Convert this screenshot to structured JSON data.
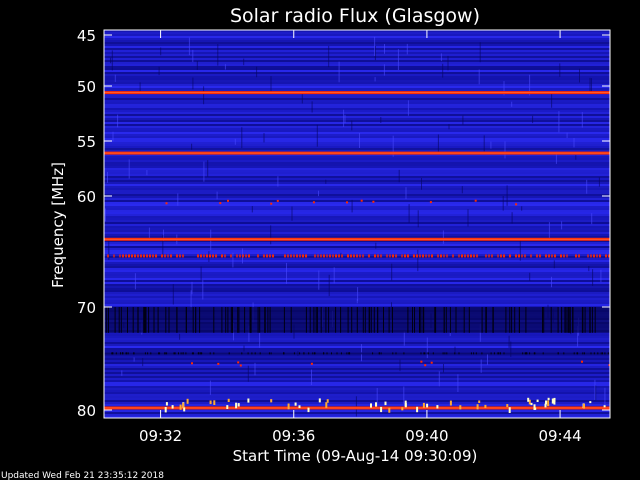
{
  "chart_data": {
    "type": "heatmap",
    "title": "Solar radio Flux (Glasgow)",
    "xlabel": "Start Time (09-Aug-14 09:30:09)",
    "ylabel": "Frequency [MHz]",
    "x_ticks": [
      "09:32",
      "09:36",
      "09:40",
      "09:44"
    ],
    "x_tick_minutes": [
      2,
      6,
      10,
      14
    ],
    "xlim_minutes": [
      0.3,
      15.5
    ],
    "y_ticks": [
      45,
      50,
      55,
      60,
      70,
      80
    ],
    "ylim": [
      80.5,
      44.3
    ],
    "colors": {
      "background": "#000000",
      "low": "#0a0a8c",
      "mid": "#2a2af0",
      "high": "#ff2a00",
      "peak": "#ffffcc"
    },
    "bands": [
      {
        "freq": 50.6,
        "level": "high"
      },
      {
        "freq": 56.1,
        "level": "high"
      },
      {
        "freq": 63.9,
        "level": "high"
      },
      {
        "freq": 65.4,
        "level": "high-speckled"
      },
      {
        "freq": 79.8,
        "level": "high"
      }
    ],
    "dark_regions": [
      {
        "from": 70.0,
        "to": 72.5
      },
      {
        "from": 74.4,
        "to": 74.6
      }
    ]
  },
  "footer": {
    "updated": "Updated Wed Feb 21 23:35:12 2018"
  }
}
